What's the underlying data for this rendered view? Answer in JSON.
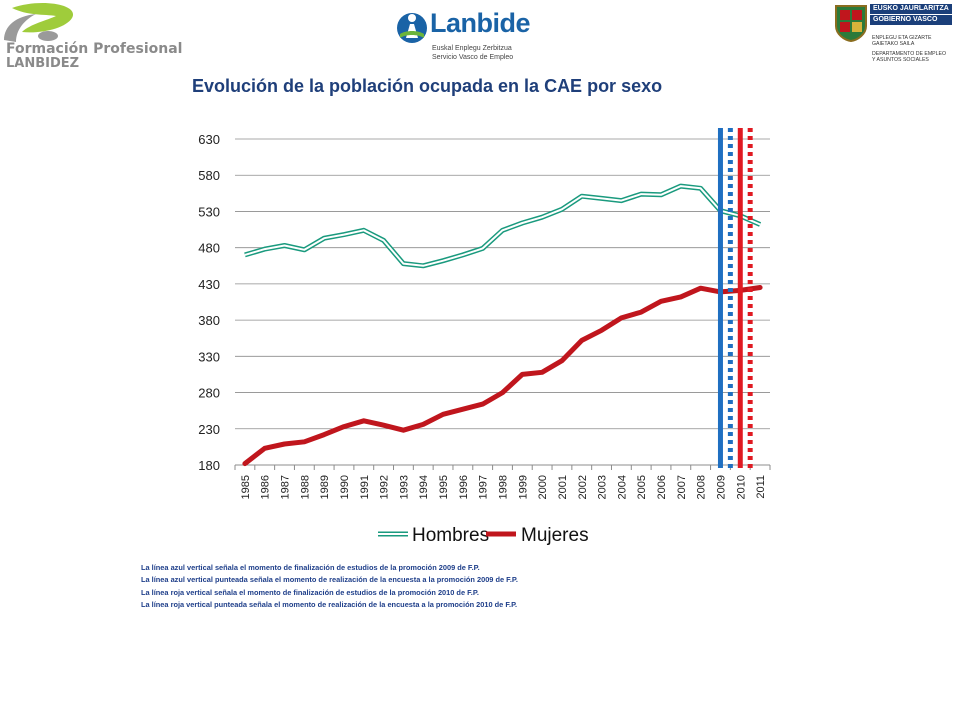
{
  "logos": {
    "formacion": {
      "line1": "Formación Profesional",
      "line2": "LANBIDEZ"
    },
    "lanbide": {
      "brand": "Lanbide",
      "sub1": "Euskal Enplegu Zerbitzua",
      "sub2": "Servicio Vasco de Empleo"
    },
    "gobierno": {
      "band1": "EUSKO JAURLARITZA",
      "band2": "GOBIERNO VASCO",
      "dept1a": "ENPLEGU ETA GIZARTE",
      "dept1b": "GAIETAKO SAILA",
      "dept2a": "DEPARTAMENTO DE EMPLEO",
      "dept2b": "Y ASUNTOS SOCIALES"
    }
  },
  "chart_data": {
    "type": "line",
    "title": "Evolución de la población ocupada en la CAE por sexo",
    "xlabel": "",
    "ylabel": "",
    "ylim": [
      180,
      630
    ],
    "yticks": [
      "630",
      "580",
      "530",
      "480",
      "430",
      "380",
      "330",
      "280",
      "230",
      "180"
    ],
    "categories": [
      "1985",
      "1986",
      "1987",
      "1988",
      "1989",
      "1990",
      "1991",
      "1992",
      "1993",
      "1994",
      "1995",
      "1996",
      "1997",
      "1998",
      "1999",
      "2000",
      "2001",
      "2002",
      "2003",
      "2004",
      "2005",
      "2006",
      "2007",
      "2008",
      "2009",
      "2010",
      "2011"
    ],
    "series": [
      {
        "name": "Hombres",
        "color": "#1a9a7e",
        "style": "double",
        "values": [
          470,
          478,
          483,
          477,
          493,
          498,
          504,
          490,
          458,
          455,
          462,
          470,
          479,
          504,
          514,
          522,
          533,
          551,
          548,
          545,
          554,
          553,
          565,
          562,
          531,
          524,
          512
        ]
      },
      {
        "name": "Mujeres",
        "color": "#c0161d",
        "style": "thick",
        "values": [
          182,
          203,
          209,
          212,
          222,
          233,
          241,
          235,
          228,
          236,
          250,
          257,
          264,
          280,
          305,
          308,
          324,
          352,
          366,
          383,
          391,
          406,
          412,
          424,
          419,
          421,
          425
        ]
      }
    ],
    "vertical_markers": [
      {
        "position": 2009.0,
        "color": "#1f6fc1",
        "style": "solid"
      },
      {
        "position": 2009.5,
        "color": "#1f6fc1",
        "style": "dotted"
      },
      {
        "position": 2010.0,
        "color": "#e01a22",
        "style": "solid"
      },
      {
        "position": 2010.5,
        "color": "#e01a22",
        "style": "dotted"
      }
    ],
    "legend_position": "bottom",
    "grid": "horizontal"
  },
  "notes": [
    "La línea azul vertical señala el momento de finalización de estudios de la promoción 2009 de F.P.",
    "La línea azul vertical punteada señala el momento de realización de la encuesta a la promoción 2009 de F.P.",
    "La línea roja vertical señala el momento de finalización de estudios de la promoción 2010 de F.P.",
    "La línea roja vertical punteada señala el momento de realización de la encuesta a la promoción 2010 de F.P."
  ]
}
